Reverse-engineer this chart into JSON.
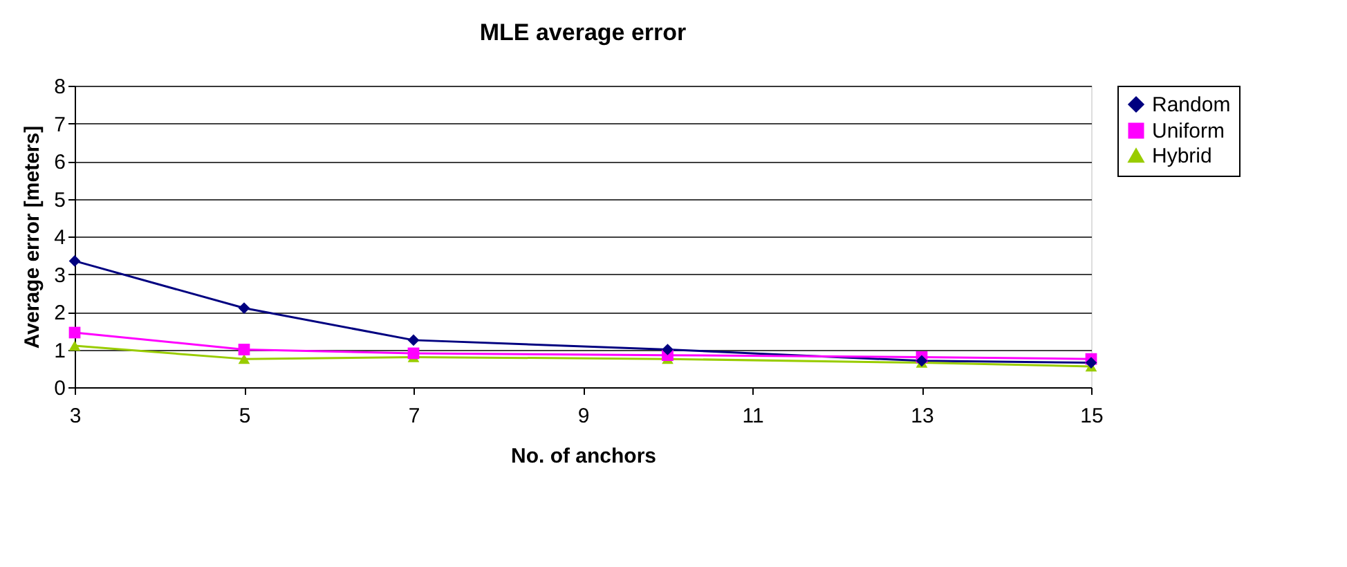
{
  "chart_data": {
    "type": "line",
    "title": "MLE average error",
    "xlabel": "No. of anchors",
    "ylabel": "Average error [meters]",
    "x": [
      3,
      5,
      7,
      10,
      13,
      15
    ],
    "series": [
      {
        "name": "Random",
        "color": "#000080",
        "marker": "diamond",
        "values": [
          3.35,
          2.1,
          1.25,
          1.0,
          0.7,
          0.65
        ]
      },
      {
        "name": "Uniform",
        "color": "#ff00ff",
        "marker": "square",
        "values": [
          1.45,
          1.0,
          0.9,
          0.85,
          0.8,
          0.75
        ]
      },
      {
        "name": "Hybrid",
        "color": "#99cc00",
        "marker": "triangle",
        "values": [
          1.1,
          0.75,
          0.8,
          0.75,
          0.65,
          0.55
        ]
      }
    ],
    "xlim": [
      3,
      15
    ],
    "xticks": [
      3,
      5,
      7,
      9,
      11,
      13,
      15
    ],
    "ylim": [
      0,
      8
    ],
    "yticks": [
      0,
      1,
      2,
      3,
      4,
      5,
      6,
      7,
      8
    ],
    "grid": "y",
    "legend": "right"
  }
}
